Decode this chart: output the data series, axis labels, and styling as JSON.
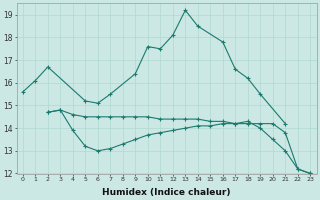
{
  "xlabel": "Humidex (Indice chaleur)",
  "bg_color": "#cce8e4",
  "grid_color": "#b0d8d0",
  "line_color": "#1a7a6e",
  "xlim": [
    -0.5,
    23.5
  ],
  "ylim": [
    12,
    19.5
  ],
  "yticks": [
    12,
    13,
    14,
    15,
    16,
    17,
    18,
    19
  ],
  "xticks": [
    0,
    1,
    2,
    3,
    4,
    5,
    6,
    7,
    8,
    9,
    10,
    11,
    12,
    13,
    14,
    15,
    16,
    17,
    18,
    19,
    20,
    21,
    22,
    23
  ],
  "line1_x": [
    0,
    1,
    2,
    5,
    6,
    7,
    9,
    10,
    11,
    12,
    13,
    14,
    16,
    17,
    18,
    19,
    21
  ],
  "line1_y": [
    15.6,
    16.1,
    16.7,
    15.2,
    15.1,
    15.5,
    16.4,
    17.6,
    17.5,
    18.1,
    19.2,
    18.5,
    17.8,
    16.6,
    16.2,
    15.5,
    14.2
  ],
  "line2_x": [
    2,
    3,
    4,
    5,
    6,
    7,
    8,
    9,
    10,
    11,
    12,
    13,
    14,
    15,
    16,
    17,
    18,
    19,
    20,
    21,
    22,
    23
  ],
  "line2_y": [
    14.7,
    14.8,
    14.6,
    14.5,
    14.5,
    14.5,
    14.5,
    14.5,
    14.5,
    14.4,
    14.4,
    14.4,
    14.4,
    14.3,
    14.3,
    14.2,
    14.2,
    14.2,
    14.2,
    13.8,
    12.2,
    12.0
  ],
  "line3_x": [
    2,
    3,
    4,
    5,
    6,
    7,
    8,
    9,
    10,
    11,
    12,
    13,
    14,
    15,
    16,
    17,
    18,
    19,
    20,
    21,
    22,
    23
  ],
  "line3_y": [
    14.7,
    14.8,
    13.9,
    13.2,
    13.0,
    13.1,
    13.3,
    13.5,
    13.7,
    13.8,
    13.9,
    14.0,
    14.1,
    14.1,
    14.2,
    14.2,
    14.3,
    14.0,
    13.5,
    13.0,
    12.2,
    12.0
  ]
}
